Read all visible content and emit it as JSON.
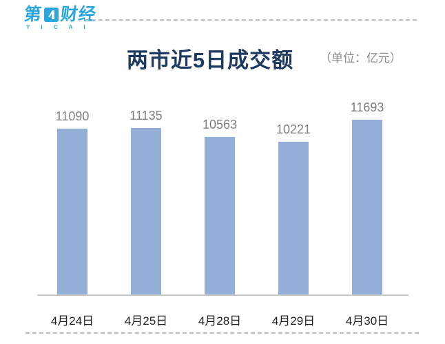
{
  "brand": {
    "logo_char_left": "第",
    "logo_char_right": "财经",
    "logo_subtext": "Y I C A I",
    "logo_color": "#29a6de"
  },
  "header": {
    "title": "两市近5日成交额",
    "unit_label": "（单位：亿元）"
  },
  "chart_data": {
    "type": "bar",
    "title": "两市近5日成交额",
    "unit": "亿元",
    "categories": [
      "4月24日",
      "4月25日",
      "4月28日",
      "4月29日",
      "4月30日"
    ],
    "values": [
      11090,
      11135,
      10563,
      10221,
      11693
    ],
    "ylim": [
      0,
      11693
    ],
    "grid": false,
    "legend": "none",
    "value_labels_shown": true,
    "bar_color": "#94afd7",
    "value_label_color": "#7f7f7f",
    "axis_label_color": "#1f1f1f"
  }
}
